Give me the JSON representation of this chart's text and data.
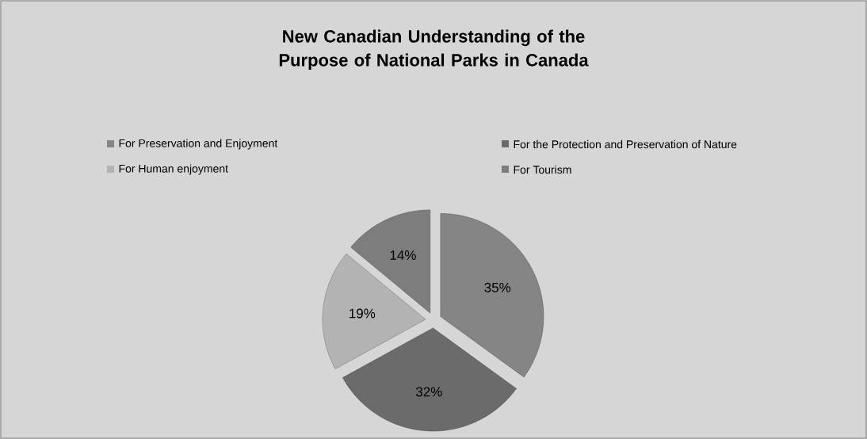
{
  "chart_data": {
    "type": "pie",
    "title": "New Canadian Understanding of the Purpose of National Parks in Canada",
    "categories": [
      "For Preservation and Enjoyment",
      "For the Protection and Preservation of Nature",
      "For Human enjoyment",
      "For Tourism"
    ],
    "values": [
      35,
      32,
      19,
      14
    ],
    "colors": [
      "#858585",
      "#6b6b6b",
      "#b3b3b3",
      "#7d7d7d"
    ],
    "value_labels": [
      "35%",
      "32%",
      "19%",
      "14%"
    ],
    "legend": "top"
  }
}
